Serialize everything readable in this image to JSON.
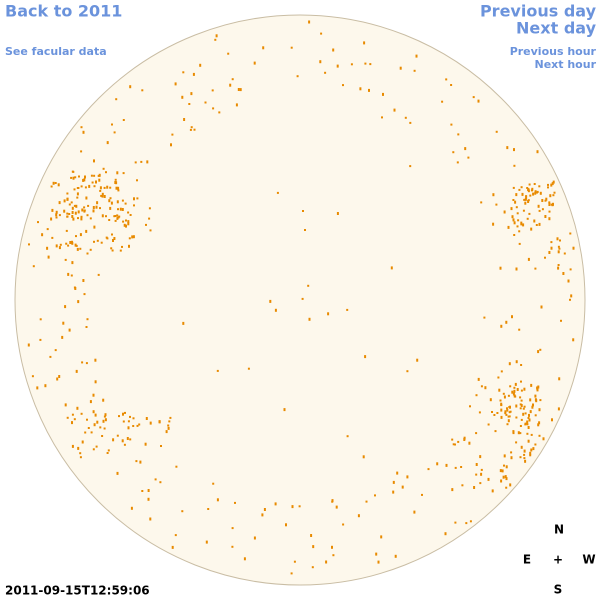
{
  "header": {
    "back_link": "Back to 2011",
    "facular_link": "See facular data",
    "previous_day": "Previous day",
    "next_day": "Next day",
    "previous_hour": "Previous hour",
    "next_hour": "Next hour"
  },
  "timestamp": "2011-09-15T12:59:06",
  "compass": {
    "north": "N",
    "east": "E",
    "center": "+",
    "west": "W",
    "south": "S"
  }
}
